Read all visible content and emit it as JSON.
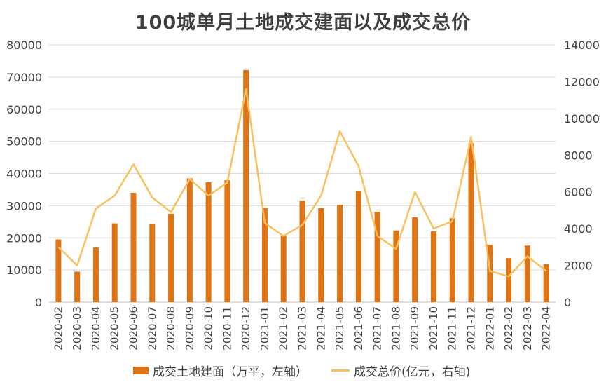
{
  "chart_data": {
    "type": "bar",
    "title": "100城单月土地成交建面以及成交总价",
    "categories": [
      "2020-02",
      "2020-03",
      "2020-04",
      "2020-05",
      "2020-06",
      "2020-07",
      "2020-08",
      "2020-09",
      "2020-10",
      "2020-11",
      "2020-12",
      "2021-01",
      "2021-02",
      "2021-03",
      "2021-04",
      "2021-05",
      "2021-06",
      "2021-07",
      "2021-08",
      "2021-09",
      "2021-10",
      "2021-11",
      "2021-12",
      "2022-01",
      "2022-02",
      "2022-03",
      "2022-04"
    ],
    "series": [
      {
        "name": "成交土地建面（万平，左轴）",
        "type": "bar",
        "axis": "left",
        "color": "#e07314",
        "values": [
          19500,
          9500,
          17000,
          24500,
          34000,
          24300,
          27500,
          38500,
          37300,
          37900,
          72200,
          29300,
          20800,
          31600,
          29200,
          30300,
          34600,
          28100,
          22300,
          26400,
          22000,
          26100,
          49400,
          17900,
          13700,
          17600,
          11800
        ]
      },
      {
        "name": "成交总价(亿元，右轴)",
        "type": "line",
        "axis": "right",
        "color": "#f9c15e",
        "values": [
          3000,
          2000,
          5100,
          5800,
          7500,
          5700,
          4900,
          6700,
          5800,
          6500,
          11600,
          4300,
          3600,
          4200,
          5800,
          9300,
          7400,
          3600,
          2900,
          6000,
          4000,
          4400,
          9000,
          1700,
          1400,
          2500,
          1700
        ]
      }
    ],
    "ylim_left": [
      0,
      80000
    ],
    "yticks_left": [
      "0",
      "10000",
      "20000",
      "30000",
      "40000",
      "50000",
      "60000",
      "70000",
      "80000"
    ],
    "ylim_right": [
      0,
      14000
    ],
    "yticks_right": [
      "0",
      "2000",
      "4000",
      "6000",
      "8000",
      "10000",
      "12000",
      "14000"
    ],
    "grid": true,
    "legend_position": "bottom"
  }
}
